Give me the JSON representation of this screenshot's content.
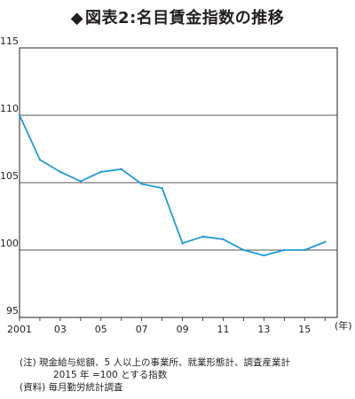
{
  "title": {
    "marker": "◆",
    "text": "図表2:名目賃金指数の推移"
  },
  "chart_data": {
    "type": "line",
    "title": "図表2:名目賃金指数の推移",
    "xlabel": "(年)",
    "ylabel": "",
    "x": [
      2001,
      2002,
      2003,
      2004,
      2005,
      2006,
      2007,
      2008,
      2009,
      2010,
      2011,
      2012,
      2013,
      2014,
      2015,
      2016
    ],
    "xlim": [
      2001,
      2016.6
    ],
    "ylim": [
      95,
      115
    ],
    "yticks": [
      95,
      100,
      105,
      110,
      115
    ],
    "xticks": [
      {
        "x": 2001,
        "label": "2001"
      },
      {
        "x": 2003,
        "label": "03"
      },
      {
        "x": 2005,
        "label": "05"
      },
      {
        "x": 2007,
        "label": "07"
      },
      {
        "x": 2009,
        "label": "09"
      },
      {
        "x": 2011,
        "label": "11"
      },
      {
        "x": 2013,
        "label": "13"
      },
      {
        "x": 2015,
        "label": "15"
      }
    ],
    "series": [
      {
        "values": [
          110.0,
          106.7,
          105.8,
          105.1,
          105.8,
          106.0,
          104.9,
          104.6,
          100.5,
          101.0,
          100.8,
          100.0,
          99.6,
          100.0,
          100.0,
          100.6
        ],
        "color": "#1e9bd7"
      }
    ],
    "grid": "horizontal",
    "legend": "none"
  },
  "notes": {
    "line1": "(注)  現金給与総額、5 人以上の事業所、就業形態計、調査産業計",
    "line2": "2015 年 =100 とする指数",
    "line3": "(資料)  毎月勤労統計調査"
  }
}
